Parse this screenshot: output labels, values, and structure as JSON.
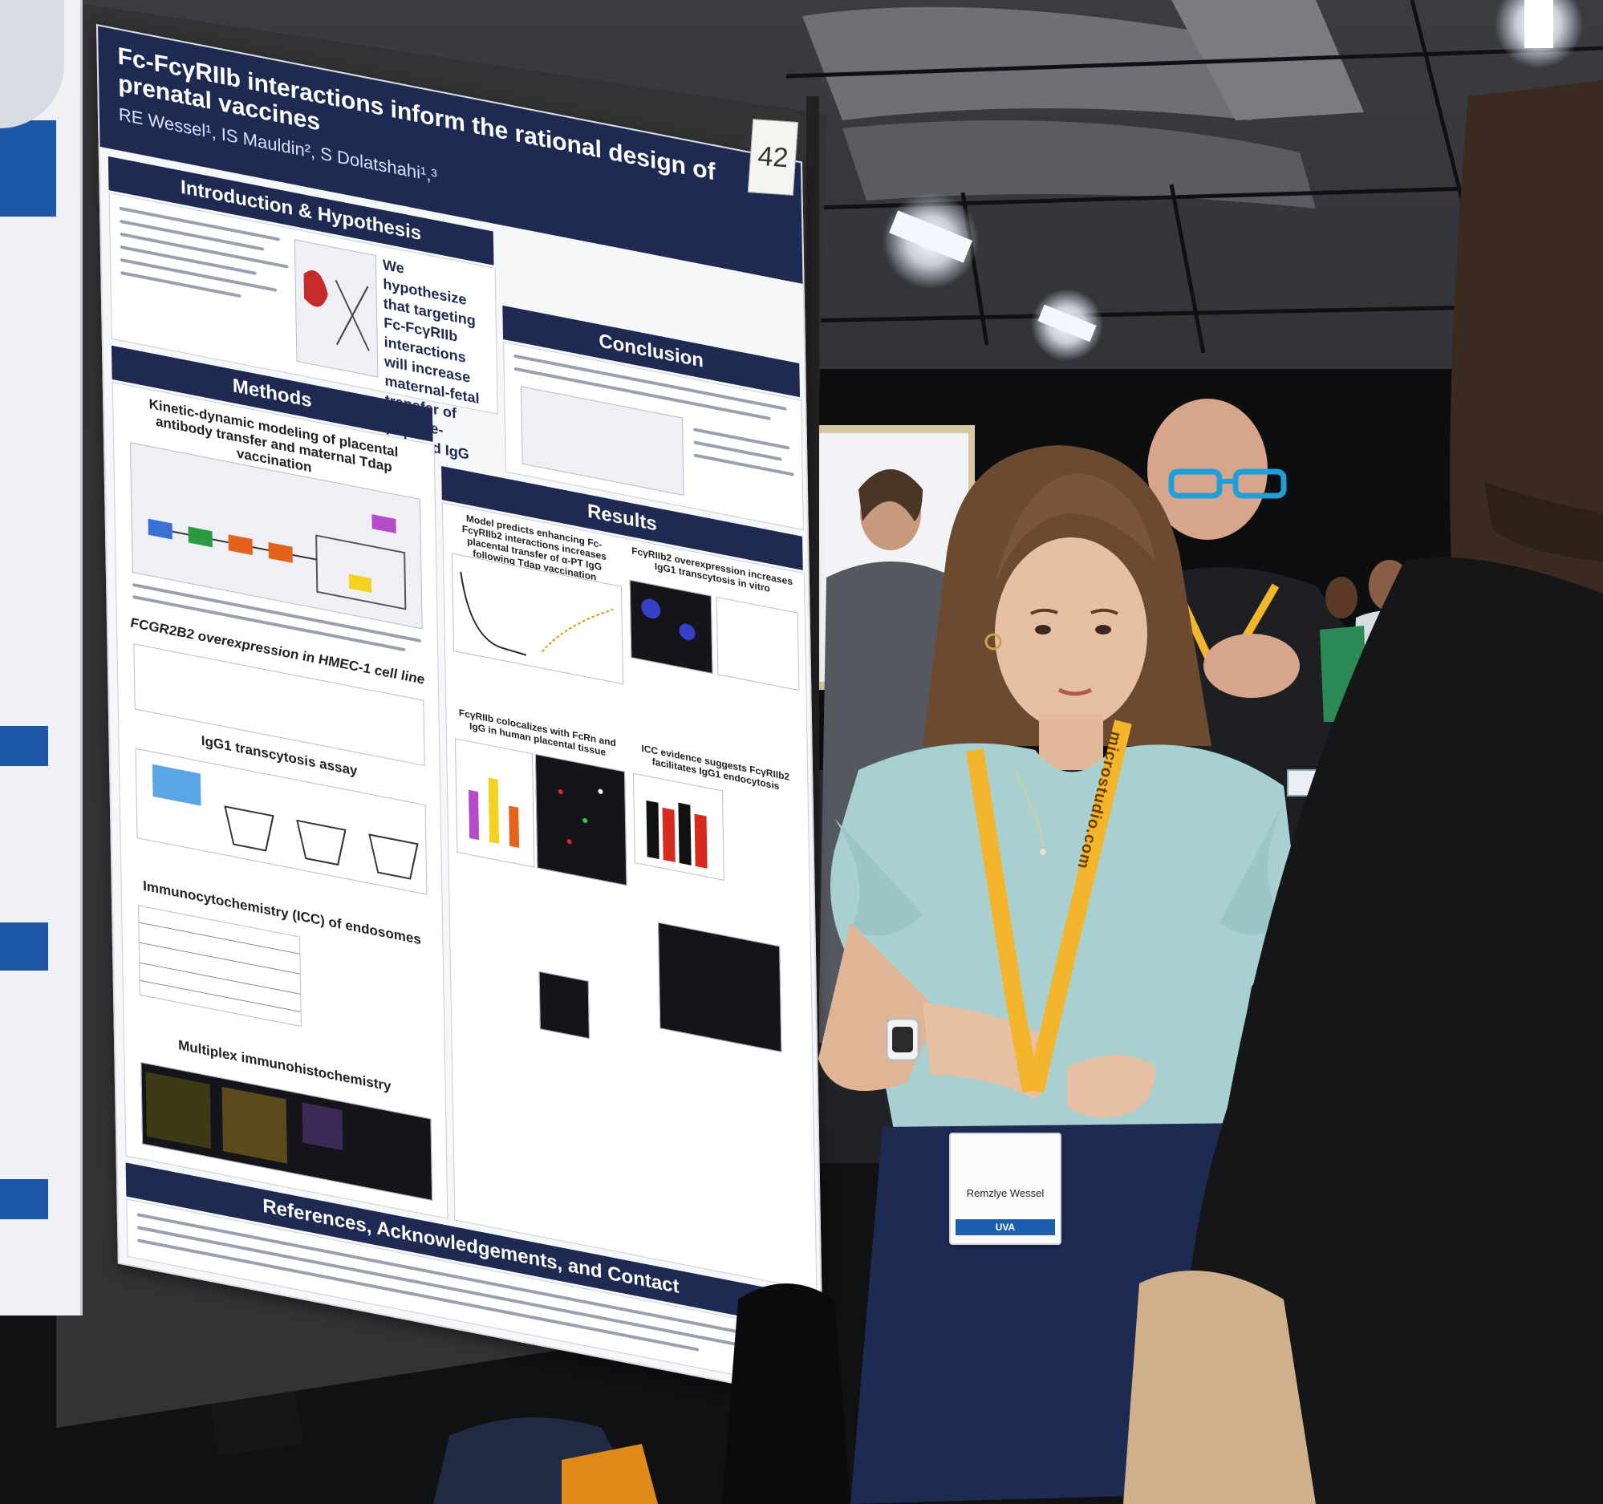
{
  "poster": {
    "number": "42",
    "title": "Fc-FcγRIIb interactions inform the rational design of prenatal vaccines",
    "authors": "RE Wessel¹, IS Mauldin², S Dolatshahi¹,³",
    "sections": {
      "intro": "Introduction & Hypothesis",
      "methods": "Methods",
      "conclusion": "Conclusion",
      "results": "Results",
      "references": "References, Acknowledgements, and Contact"
    },
    "hypothesis": "We hypothesize that targeting Fc-FcγRIIb interactions will increase maternal-fetal transfer of vaccine-induced IgG",
    "methods_headings": [
      "Kinetic-dynamic modeling of placental antibody transfer and maternal Tdap vaccination",
      "FCGR2B2 overexpression in HMEC-1 cell line",
      "IgG1 transcytosis assay",
      "Immunocytochemistry (ICC) of endosomes",
      "Multiplex immunohistochemistry"
    ],
    "results_headings": [
      "Model predicts enhancing Fc-FcγRIIb2 interactions increases placental transfer of α-PT IgG following Tdap vaccination",
      "FcγRIIb2 overexpression increases IgG1 transcytosis in vitro",
      "FcγRIIb colocalizes with FcRn and IgG in human placental tissue",
      "ICC evidence suggests FcγRIIb2 facilitates IgG1 endocytosis"
    ]
  },
  "badge": {
    "name": "Remzlye Wessel",
    "org": "UVA"
  },
  "lanyard": {
    "text": "microstudio.com"
  },
  "colors": {
    "poster_navy": "#1e2a52",
    "lanyard_yellow": "#f2b52c",
    "shirt": "#a9d2d3",
    "skirt": "#1d2a52"
  }
}
